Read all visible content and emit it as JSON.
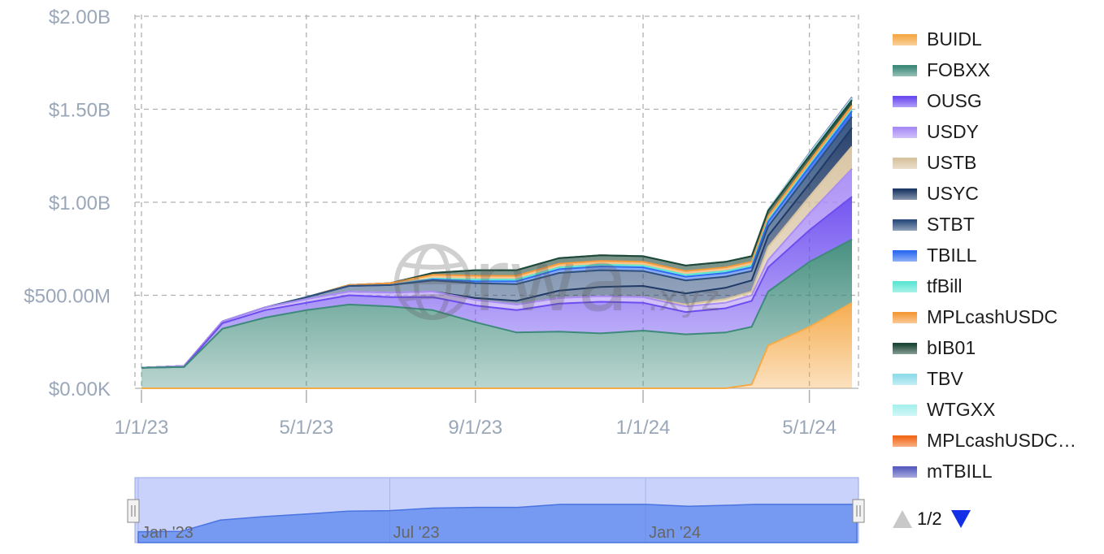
{
  "watermark": {
    "brand": "rwa",
    "suffix": ".xyz"
  },
  "navigator": {
    "labels": [
      "Jan '23",
      "Jul '23",
      "Jan '24"
    ]
  },
  "legend_pager": {
    "text": "1/2"
  },
  "colors": {
    "grid": "#b0b0b0",
    "axis_label": "#9aa7b8",
    "navigator_fill": "#c8d2fa",
    "navigator_series": "#5b86ee"
  },
  "chart_data": {
    "type": "area",
    "stacked": true,
    "x_axis": {
      "type": "datetime",
      "ticks": [
        "1/1/23",
        "5/1/23",
        "9/1/23",
        "1/1/24",
        "5/1/24"
      ],
      "range": [
        "2023-01-01",
        "2024-06-01"
      ]
    },
    "y_axis": {
      "ticks": [
        "$0.00K",
        "$500.00M",
        "$1.00B",
        "$1.50B",
        "$2.00B"
      ],
      "ylim": [
        0,
        2000
      ],
      "unit": "millions USD"
    },
    "grid": true,
    "legend_position": "right",
    "x": [
      "2023-01-01",
      "2023-02-01",
      "2023-03-01",
      "2023-04-01",
      "2023-05-01",
      "2023-06-01",
      "2023-07-01",
      "2023-08-01",
      "2023-09-01",
      "2023-10-01",
      "2023-11-01",
      "2023-12-01",
      "2024-01-01",
      "2024-02-01",
      "2024-03-01",
      "2024-03-20",
      "2024-04-01",
      "2024-05-01",
      "2024-06-01"
    ],
    "series": [
      {
        "name": "BUIDL",
        "color": "#f5a947",
        "values": [
          0,
          0,
          0,
          0,
          0,
          0,
          0,
          0,
          0,
          0,
          0,
          0,
          0,
          0,
          0,
          20,
          230,
          330,
          460
        ]
      },
      {
        "name": "FOBXX",
        "color": "#3d8a7a",
        "values": [
          110,
          115,
          320,
          380,
          420,
          450,
          440,
          420,
          355,
          300,
          305,
          295,
          310,
          290,
          300,
          310,
          290,
          350,
          340
        ]
      },
      {
        "name": "OUSG",
        "color": "#6d4df0",
        "values": [
          0,
          0,
          30,
          40,
          40,
          50,
          50,
          70,
          90,
          120,
          150,
          170,
          150,
          120,
          130,
          140,
          130,
          170,
          230
        ]
      },
      {
        "name": "USDY",
        "color": "#a98cf5",
        "values": [
          0,
          5,
          10,
          15,
          20,
          20,
          25,
          30,
          30,
          30,
          30,
          30,
          30,
          30,
          30,
          30,
          40,
          90,
          150
        ]
      },
      {
        "name": "USTB",
        "color": "#d8c3a0",
        "values": [
          0,
          0,
          0,
          0,
          0,
          0,
          0,
          0,
          0,
          0,
          0,
          0,
          0,
          10,
          20,
          20,
          70,
          90,
          120
        ]
      },
      {
        "name": "USYC",
        "color": "#1f3a66",
        "values": [
          0,
          0,
          0,
          0,
          0,
          0,
          0,
          0,
          10,
          20,
          40,
          50,
          60,
          60,
          60,
          60,
          60,
          70,
          100
        ]
      },
      {
        "name": "STBT",
        "color": "#2e4f7e",
        "values": [
          0,
          0,
          0,
          0,
          10,
          30,
          40,
          60,
          80,
          90,
          95,
          90,
          80,
          70,
          60,
          50,
          50,
          60,
          60
        ]
      },
      {
        "name": "TBILL",
        "color": "#2f6cf0",
        "values": [
          0,
          0,
          0,
          0,
          0,
          0,
          0,
          5,
          10,
          15,
          20,
          20,
          20,
          20,
          20,
          20,
          25,
          30,
          30
        ]
      },
      {
        "name": "tfBill",
        "color": "#5ee6d4",
        "values": [
          0,
          0,
          0,
          0,
          0,
          0,
          0,
          5,
          10,
          10,
          10,
          10,
          10,
          10,
          10,
          10,
          10,
          10,
          10
        ]
      },
      {
        "name": "MPLcashUSDC",
        "color": "#f59a3a",
        "values": [
          0,
          0,
          0,
          0,
          0,
          5,
          10,
          20,
          20,
          20,
          20,
          20,
          20,
          20,
          20,
          20,
          20,
          20,
          20
        ]
      },
      {
        "name": "bIB01",
        "color": "#1d4736",
        "values": [
          0,
          0,
          0,
          0,
          0,
          0,
          0,
          10,
          30,
          30,
          30,
          30,
          30,
          30,
          30,
          30,
          30,
          30,
          30
        ]
      },
      {
        "name": "TBV",
        "color": "#8fdcea",
        "values": [
          0,
          0,
          0,
          0,
          0,
          0,
          0,
          0,
          0,
          0,
          0,
          0,
          0,
          0,
          0,
          0,
          5,
          5,
          5
        ]
      },
      {
        "name": "WTGXX",
        "color": "#a8f0ee",
        "values": [
          0,
          0,
          0,
          0,
          0,
          0,
          0,
          0,
          0,
          0,
          0,
          0,
          0,
          0,
          0,
          0,
          0,
          5,
          5
        ]
      },
      {
        "name": "MPLcashUSDC…",
        "color": "#f26a1b",
        "values": [
          0,
          0,
          0,
          0,
          0,
          0,
          0,
          0,
          0,
          0,
          0,
          0,
          0,
          0,
          0,
          0,
          0,
          0,
          0
        ]
      },
      {
        "name": "mTBILL",
        "color": "#5a5fbf",
        "values": [
          0,
          0,
          0,
          0,
          0,
          0,
          0,
          0,
          0,
          0,
          0,
          0,
          0,
          0,
          0,
          0,
          0,
          5,
          5
        ]
      }
    ]
  }
}
